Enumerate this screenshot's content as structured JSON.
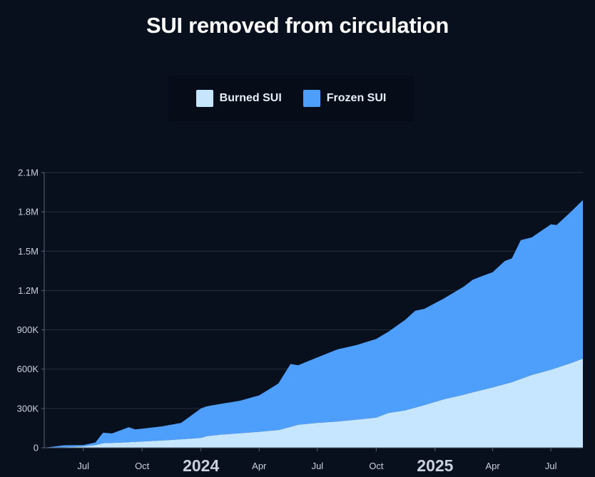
{
  "chart_data": {
    "type": "area",
    "stacked": true,
    "title": "SUI removed from circulation",
    "xlabel": "",
    "ylabel": "",
    "x_range": [
      "2023-05-01",
      "2025-08-20"
    ],
    "ylim": [
      0,
      2100000
    ],
    "y_ticks": [
      {
        "value": 0,
        "label": "0"
      },
      {
        "value": 300000,
        "label": "300K"
      },
      {
        "value": 600000,
        "label": "600K"
      },
      {
        "value": 900000,
        "label": "900K"
      },
      {
        "value": 1200000,
        "label": "1.2M"
      },
      {
        "value": 1500000,
        "label": "1.5M"
      },
      {
        "value": 1800000,
        "label": "1.8M"
      },
      {
        "value": 2100000,
        "label": "2.1M"
      }
    ],
    "x_ticks": [
      {
        "date": "2023-07-01",
        "label": "Jul",
        "major": false
      },
      {
        "date": "2023-10-01",
        "label": "Oct",
        "major": false
      },
      {
        "date": "2024-01-01",
        "label": "2024",
        "major": true
      },
      {
        "date": "2024-04-01",
        "label": "Apr",
        "major": false
      },
      {
        "date": "2024-07-01",
        "label": "Jul",
        "major": false
      },
      {
        "date": "2024-10-01",
        "label": "Oct",
        "major": false
      },
      {
        "date": "2025-01-01",
        "label": "2025",
        "major": true
      },
      {
        "date": "2025-04-01",
        "label": "Apr",
        "major": false
      },
      {
        "date": "2025-07-01",
        "label": "Jul",
        "major": false
      }
    ],
    "grid": true,
    "legend_position": "top-center",
    "series": [
      {
        "name": "Burned SUI",
        "color": "#c6e5fe",
        "points": [
          [
            "2023-05-01",
            0
          ],
          [
            "2023-06-01",
            4000
          ],
          [
            "2023-07-01",
            10000
          ],
          [
            "2023-07-20",
            20000
          ],
          [
            "2023-08-01",
            35000
          ],
          [
            "2023-09-01",
            40000
          ],
          [
            "2023-10-01",
            48000
          ],
          [
            "2023-11-01",
            55000
          ],
          [
            "2023-12-01",
            65000
          ],
          [
            "2024-01-01",
            75000
          ],
          [
            "2024-01-10",
            88000
          ],
          [
            "2024-02-01",
            100000
          ],
          [
            "2024-03-01",
            110000
          ],
          [
            "2024-04-01",
            122000
          ],
          [
            "2024-05-01",
            135000
          ],
          [
            "2024-06-01",
            175000
          ],
          [
            "2024-07-01",
            190000
          ],
          [
            "2024-08-01",
            200000
          ],
          [
            "2024-09-01",
            215000
          ],
          [
            "2024-10-01",
            230000
          ],
          [
            "2024-10-20",
            265000
          ],
          [
            "2024-11-15",
            285000
          ],
          [
            "2024-12-15",
            325000
          ],
          [
            "2025-01-15",
            370000
          ],
          [
            "2025-02-15",
            405000
          ],
          [
            "2025-03-15",
            440000
          ],
          [
            "2025-04-01",
            460000
          ],
          [
            "2025-05-01",
            500000
          ],
          [
            "2025-06-01",
            555000
          ],
          [
            "2025-07-01",
            595000
          ],
          [
            "2025-08-01",
            645000
          ],
          [
            "2025-08-20",
            680000
          ]
        ]
      },
      {
        "name": "Frozen SUI",
        "color": "#4d9ffb",
        "points": [
          [
            "2023-05-01",
            0
          ],
          [
            "2023-06-01",
            15000
          ],
          [
            "2023-07-01",
            10000
          ],
          [
            "2023-07-20",
            20000
          ],
          [
            "2023-08-01",
            80000
          ],
          [
            "2023-08-15",
            72000
          ],
          [
            "2023-09-10",
            115000
          ],
          [
            "2023-09-20",
            95000
          ],
          [
            "2023-10-01",
            97000
          ],
          [
            "2023-11-01",
            108000
          ],
          [
            "2023-12-01",
            125000
          ],
          [
            "2024-01-01",
            225000
          ],
          [
            "2024-02-01",
            235000
          ],
          [
            "2024-03-01",
            248000
          ],
          [
            "2024-04-01",
            278000
          ],
          [
            "2024-05-01",
            355000
          ],
          [
            "2024-05-20",
            480000
          ],
          [
            "2024-06-01",
            455000
          ],
          [
            "2024-07-01",
            500000
          ],
          [
            "2024-08-01",
            550000
          ],
          [
            "2024-09-01",
            570000
          ],
          [
            "2024-10-01",
            600000
          ],
          [
            "2024-10-20",
            620000
          ],
          [
            "2024-11-15",
            690000
          ],
          [
            "2024-12-01",
            740000
          ],
          [
            "2024-12-15",
            735000
          ],
          [
            "2025-01-15",
            770000
          ],
          [
            "2025-02-15",
            825000
          ],
          [
            "2025-03-01",
            860000
          ],
          [
            "2025-04-01",
            880000
          ],
          [
            "2025-04-20",
            940000
          ],
          [
            "2025-05-01",
            945000
          ],
          [
            "2025-05-15",
            1060000
          ],
          [
            "2025-06-01",
            1050000
          ],
          [
            "2025-07-01",
            1110000
          ],
          [
            "2025-07-10",
            1090000
          ],
          [
            "2025-08-20",
            1210000
          ]
        ]
      }
    ]
  }
}
